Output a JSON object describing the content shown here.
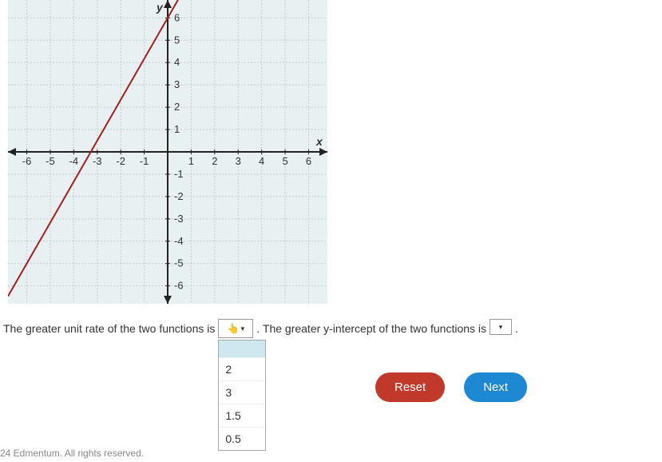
{
  "chart": {
    "type": "line",
    "background_color": "#e8f0f2",
    "grid_color": "#bfcdd1",
    "axis_color": "#222222",
    "xlim": [
      -6.8,
      6.8
    ],
    "ylim": [
      -6.8,
      6.8
    ],
    "xticks": [
      -6,
      -5,
      -4,
      -3,
      -2,
      -1,
      1,
      2,
      3,
      4,
      5,
      6
    ],
    "yticks": [
      -6,
      -5,
      -4,
      -3,
      -2,
      -1,
      1,
      2,
      3,
      4,
      5,
      6
    ],
    "tick_fontsize": 13,
    "axis_label_x": "x",
    "axis_label_y": "y",
    "line": {
      "color": "#a01f1f",
      "width": 2,
      "points": [
        [
          -6,
          -5
        ],
        [
          0,
          6
        ]
      ]
    }
  },
  "question": {
    "part1": "The greater unit rate of the two functions is",
    "part2": ". The greater y-intercept of the two functions is",
    "period": "."
  },
  "dropdown1": {
    "icon_hint": "👆",
    "options": [
      "2",
      "3",
      "1.5",
      "0.5"
    ]
  },
  "buttons": {
    "reset": "Reset",
    "next": "Next"
  },
  "footer": "24 Edmentum. All rights reserved."
}
